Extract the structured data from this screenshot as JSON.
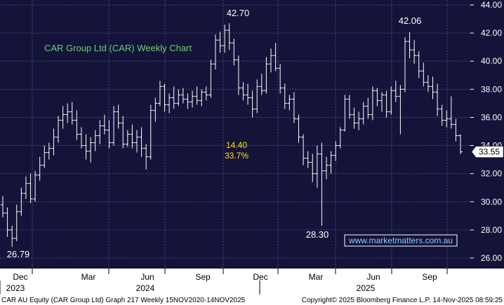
{
  "chart_data": {
    "type": "ohlc",
    "title": "CAR Group Ltd (CAR) Weekly Chart",
    "ylim": [
      25.0,
      44.2
    ],
    "y_ticks": [
      26.0,
      28.0,
      30.0,
      32.0,
      34.0,
      36.0,
      38.0,
      40.0,
      42.0,
      44.0
    ],
    "y_tick_labels": [
      "26.00",
      "28.00",
      "30.00",
      "32.00",
      "34.00",
      "36.00",
      "38.00",
      "40.00",
      "42.00",
      "44.00"
    ],
    "month_labels": [
      "Dec",
      "Mar",
      "Jun",
      "Sep",
      "Dec",
      "Mar",
      "Jun",
      "Sep"
    ],
    "year_labels": [
      "2023",
      "2024",
      "2025"
    ],
    "last_price": "33.55",
    "annotations": {
      "low_2023": "26.79",
      "high_2024": "42.70",
      "low_2025": "28.30",
      "high_2025": "42.06",
      "range_points": "14.40",
      "range_pct": "33.7%"
    },
    "watermark": "www.marketmatters.com.au",
    "series": [
      {
        "name": "CAR",
        "values": [
          [
            29.8,
            30.4,
            28.9,
            29.2
          ],
          [
            29.2,
            29.6,
            27.5,
            28.0
          ],
          [
            28.0,
            28.3,
            26.79,
            27.4
          ],
          [
            27.4,
            29.8,
            27.2,
            29.3
          ],
          [
            29.3,
            31.0,
            29.0,
            30.6
          ],
          [
            30.6,
            31.8,
            30.2,
            31.3
          ],
          [
            31.3,
            32.0,
            29.9,
            30.2
          ],
          [
            30.2,
            32.2,
            30.0,
            31.9
          ],
          [
            31.9,
            33.2,
            31.5,
            32.6
          ],
          [
            32.6,
            34.0,
            32.4,
            33.5
          ],
          [
            33.5,
            34.2,
            33.0,
            33.8
          ],
          [
            33.8,
            35.2,
            33.3,
            34.6
          ],
          [
            34.6,
            36.1,
            34.2,
            35.8
          ],
          [
            35.8,
            36.8,
            35.2,
            36.2
          ],
          [
            36.2,
            37.0,
            35.6,
            36.4
          ],
          [
            36.4,
            37.1,
            35.5,
            35.8
          ],
          [
            35.8,
            36.5,
            34.4,
            34.8
          ],
          [
            34.8,
            35.3,
            33.8,
            34.0
          ],
          [
            34.0,
            34.8,
            33.0,
            33.6
          ],
          [
            33.6,
            34.6,
            32.8,
            34.2
          ],
          [
            34.2,
            35.1,
            33.6,
            34.7
          ],
          [
            34.7,
            35.8,
            34.1,
            35.4
          ],
          [
            35.4,
            36.2,
            34.8,
            35.1
          ],
          [
            35.1,
            35.8,
            33.8,
            34.2
          ],
          [
            34.2,
            36.8,
            34.0,
            36.4
          ],
          [
            36.4,
            36.9,
            35.2,
            35.6
          ],
          [
            35.6,
            36.1,
            33.8,
            34.1
          ],
          [
            34.1,
            35.1,
            33.9,
            34.8
          ],
          [
            34.8,
            35.5,
            33.8,
            34.2
          ],
          [
            34.2,
            35.1,
            33.5,
            34.6
          ],
          [
            34.6,
            35.3,
            33.2,
            33.8
          ],
          [
            33.8,
            34.1,
            32.3,
            33.2
          ],
          [
            33.2,
            36.9,
            33.0,
            36.5
          ],
          [
            36.5,
            37.4,
            35.7,
            37.0
          ],
          [
            37.0,
            38.6,
            36.8,
            38.2
          ],
          [
            38.2,
            38.4,
            36.4,
            36.9
          ],
          [
            36.9,
            37.7,
            36.3,
            37.4
          ],
          [
            37.4,
            38.2,
            36.6,
            37.0
          ],
          [
            37.0,
            38.0,
            36.8,
            37.6
          ],
          [
            37.6,
            38.1,
            37.0,
            37.3
          ],
          [
            37.3,
            37.7,
            36.6,
            37.1
          ],
          [
            37.1,
            37.9,
            36.7,
            37.5
          ],
          [
            37.5,
            38.2,
            36.9,
            37.2
          ],
          [
            37.2,
            38.0,
            36.8,
            37.8
          ],
          [
            37.8,
            38.2,
            37.2,
            37.6
          ],
          [
            37.6,
            40.1,
            37.4,
            39.8
          ],
          [
            39.8,
            41.9,
            39.4,
            41.5
          ],
          [
            41.5,
            42.1,
            40.6,
            41.1
          ],
          [
            41.1,
            42.6,
            40.6,
            42.2
          ],
          [
            42.2,
            42.7,
            40.8,
            41.3
          ],
          [
            41.3,
            41.6,
            39.7,
            40.1
          ],
          [
            40.1,
            40.4,
            37.6,
            38.1
          ],
          [
            38.1,
            38.5,
            37.2,
            37.6
          ],
          [
            37.6,
            38.4,
            36.9,
            37.4
          ],
          [
            37.4,
            37.9,
            36.0,
            36.6
          ],
          [
            36.6,
            38.7,
            36.3,
            38.2
          ],
          [
            38.2,
            39.1,
            37.6,
            37.9
          ],
          [
            37.9,
            40.3,
            37.7,
            39.8
          ],
          [
            39.8,
            40.9,
            39.2,
            40.4
          ],
          [
            40.4,
            41.3,
            39.3,
            39.5
          ],
          [
            39.5,
            39.8,
            37.7,
            38.1
          ],
          [
            38.1,
            38.4,
            36.6,
            37.0
          ],
          [
            37.0,
            37.6,
            36.5,
            37.3
          ],
          [
            37.3,
            37.8,
            35.6,
            35.9
          ],
          [
            35.9,
            36.2,
            34.2,
            34.6
          ],
          [
            34.6,
            34.8,
            32.6,
            33.1
          ],
          [
            33.1,
            33.6,
            32.4,
            32.8
          ],
          [
            32.8,
            33.4,
            31.4,
            32.0
          ],
          [
            32.0,
            34.0,
            31.0,
            33.4
          ],
          [
            33.4,
            34.2,
            28.3,
            32.2
          ],
          [
            32.2,
            33.2,
            31.6,
            32.6
          ],
          [
            32.6,
            33.6,
            32.0,
            33.3
          ],
          [
            33.3,
            34.3,
            32.9,
            34.0
          ],
          [
            34.0,
            35.3,
            33.8,
            35.1
          ],
          [
            35.1,
            37.6,
            35.0,
            37.3
          ],
          [
            37.3,
            37.6,
            35.9,
            36.2
          ],
          [
            36.2,
            36.7,
            35.2,
            35.6
          ],
          [
            35.6,
            36.4,
            35.1,
            35.9
          ],
          [
            35.9,
            37.1,
            35.5,
            36.8
          ],
          [
            36.8,
            37.4,
            35.9,
            36.2
          ],
          [
            36.2,
            38.2,
            35.8,
            37.9
          ],
          [
            37.9,
            38.1,
            36.8,
            37.2
          ],
          [
            37.2,
            37.8,
            36.4,
            37.6
          ],
          [
            37.6,
            37.9,
            36.0,
            36.4
          ],
          [
            36.4,
            38.2,
            36.2,
            37.9
          ],
          [
            37.9,
            38.6,
            37.1,
            37.5
          ],
          [
            37.5,
            38.3,
            34.8,
            38.0
          ],
          [
            38.0,
            41.7,
            37.8,
            41.4
          ],
          [
            41.4,
            42.06,
            40.2,
            40.8
          ],
          [
            40.8,
            41.5,
            39.8,
            40.4
          ],
          [
            40.4,
            40.7,
            38.8,
            39.3
          ],
          [
            39.3,
            39.9,
            38.2,
            38.5
          ],
          [
            38.5,
            39.0,
            37.8,
            38.2
          ],
          [
            38.2,
            38.9,
            37.3,
            37.8
          ],
          [
            37.8,
            38.4,
            36.1,
            36.6
          ],
          [
            36.6,
            36.9,
            35.4,
            35.8
          ],
          [
            35.8,
            36.5,
            35.3,
            35.9
          ],
          [
            35.9,
            37.5,
            35.2,
            35.5
          ],
          [
            35.5,
            35.9,
            34.3,
            34.7
          ],
          [
            34.7,
            34.8,
            33.4,
            33.55
          ]
        ]
      }
    ]
  },
  "footer": {
    "left": "CAR AU Equity (CAR Group Ltd) Graph 217 Weekly 15NOV2020-14NOV2025",
    "right": "Copyright© 2025 Bloomberg Finance L.P.  14-Nov-2025 08:59:25"
  },
  "colors": {
    "background": "#141339",
    "grid": "#4a4a80",
    "bars": "#ffffff",
    "title": "#70d070",
    "annotation_range": "#ffe000",
    "watermark": "#8ad0ff",
    "last_price_box": "#ffffff"
  }
}
